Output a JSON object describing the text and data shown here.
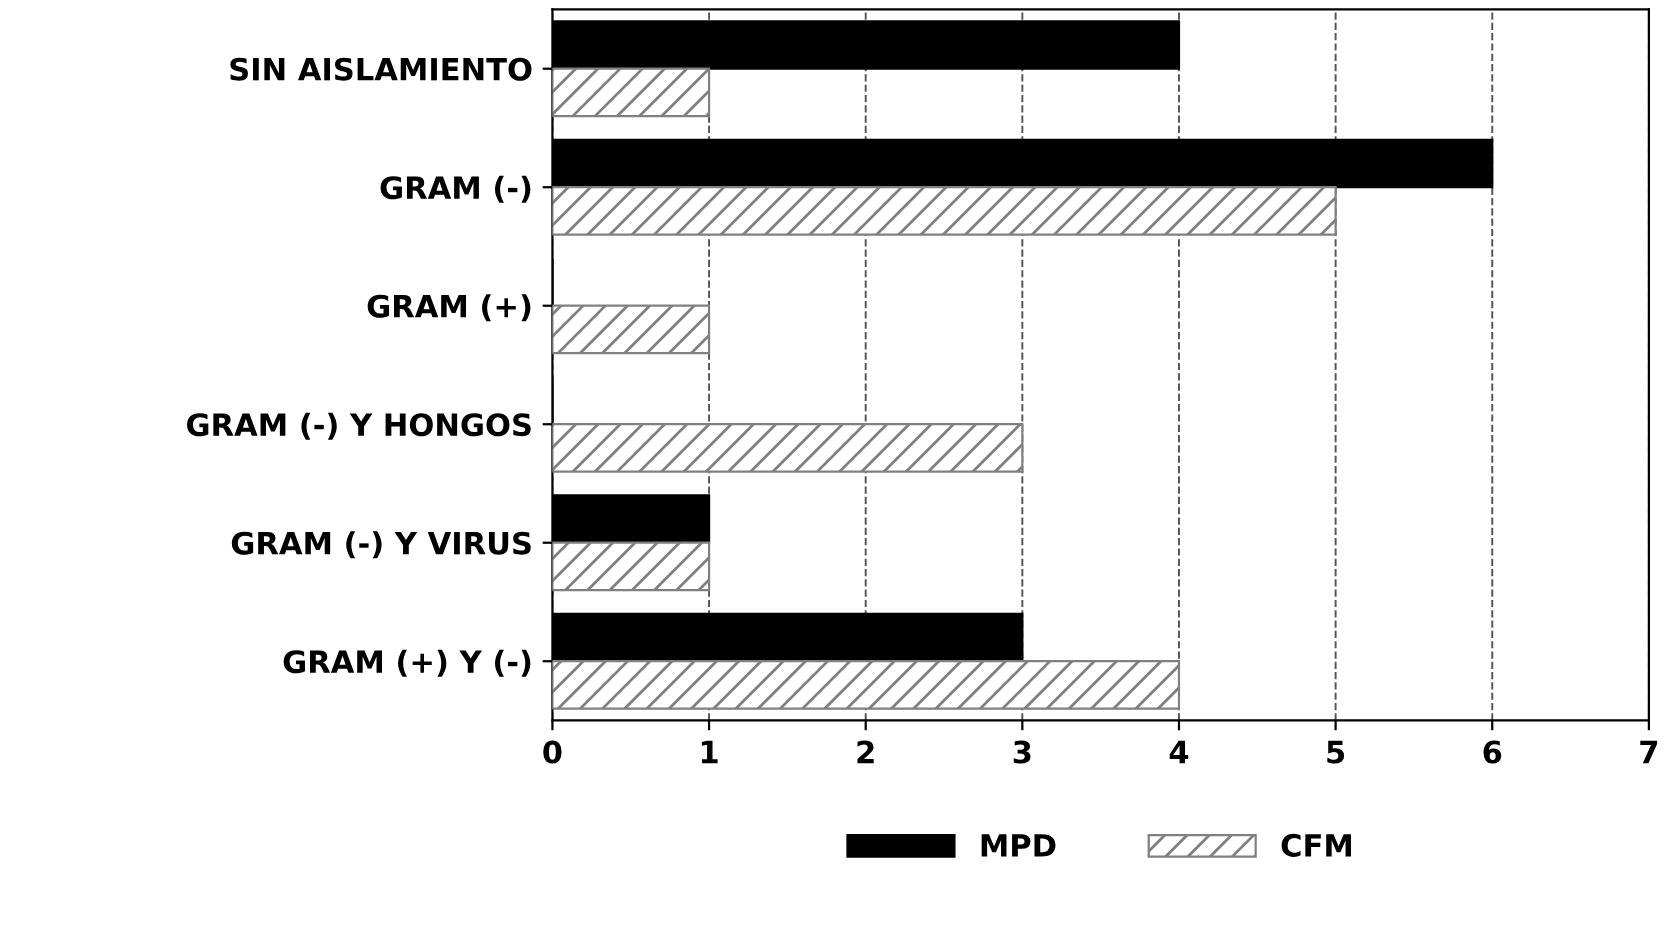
{
  "chart_data": {
    "type": "bar",
    "orientation": "horizontal",
    "categories": [
      "SIN AISLAMIENTO",
      "GRAM (-)",
      "GRAM (+)",
      "GRAM (-) Y HONGOS",
      "GRAM (-) Y VIRUS",
      "GRAM (+) Y (-)"
    ],
    "series": [
      {
        "name": "MPD",
        "color": "#000000",
        "values": [
          4,
          6,
          0,
          0,
          1,
          3
        ]
      },
      {
        "name": "CFM",
        "color": "#808080",
        "values": [
          1,
          5,
          1,
          3,
          1,
          4
        ]
      }
    ],
    "xlim": [
      0,
      7
    ],
    "xticks": [
      0,
      1,
      2,
      3,
      4,
      5,
      6,
      7
    ],
    "grid": "x",
    "legend": "bottom"
  }
}
